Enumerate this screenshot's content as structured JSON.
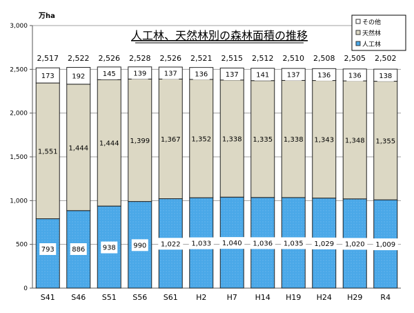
{
  "chart_data": {
    "type": "bar",
    "stacked": true,
    "title": "人工林、天然林別の森林面積の推移",
    "unit_label": "万ha",
    "categories": [
      "S41",
      "S46",
      "S51",
      "S56",
      "S61",
      "H2",
      "H7",
      "H14",
      "H19",
      "H24",
      "H29",
      "R4"
    ],
    "series": [
      {
        "name": "人工林",
        "color": "#4aa8e8",
        "values": [
          793,
          886,
          938,
          990,
          1022,
          1033,
          1040,
          1036,
          1035,
          1029,
          1020,
          1009
        ]
      },
      {
        "name": "天然林",
        "color": "#dcd8c4",
        "values": [
          1551,
          1444,
          1444,
          1399,
          1367,
          1352,
          1338,
          1335,
          1338,
          1343,
          1348,
          1355
        ]
      },
      {
        "name": "その他",
        "color": "#ffffff",
        "values": [
          173,
          192,
          145,
          139,
          137,
          136,
          137,
          141,
          137,
          136,
          136,
          138
        ]
      }
    ],
    "totals": [
      2517,
      2522,
      2526,
      2528,
      2526,
      2521,
      2515,
      2512,
      2510,
      2508,
      2505,
      2502
    ],
    "ylim": [
      0,
      3000
    ],
    "yticks": [
      0,
      500,
      1000,
      1500,
      2000,
      2500,
      3000
    ],
    "ytick_labels": [
      "0",
      "500",
      "1,000",
      "1,500",
      "2,000",
      "2,500",
      "3,000"
    ],
    "grid": true,
    "legend_position": "top-right",
    "legend_order": [
      "その他",
      "天然林",
      "人工林"
    ]
  }
}
